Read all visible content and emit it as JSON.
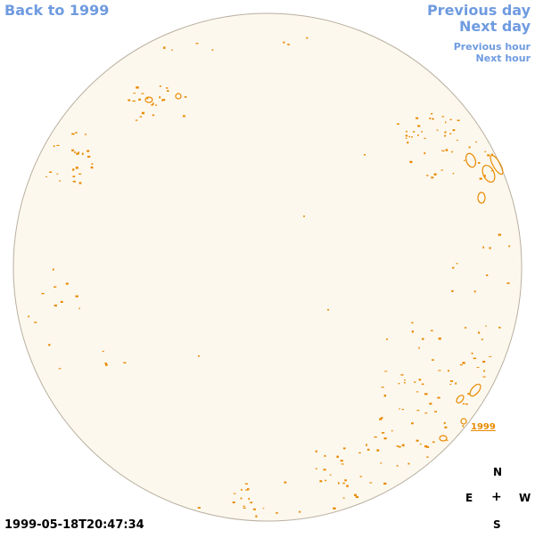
{
  "nav": {
    "back_label": "Back to 1999",
    "previous_day_label": "Previous day",
    "next_day_label": "Next day",
    "previous_hour_label": "Previous hour",
    "next_hour_label": "Next hour"
  },
  "disk": {
    "year_label": "1999",
    "fill_color": "#fdf8ee",
    "border_color": "#b8b0a0",
    "contour_color": "#e88a00"
  },
  "compass": {
    "north": "N",
    "south": "S",
    "east": "E",
    "west": "W",
    "center": "+"
  },
  "timestamp": "1999-05-18T20:47:34"
}
